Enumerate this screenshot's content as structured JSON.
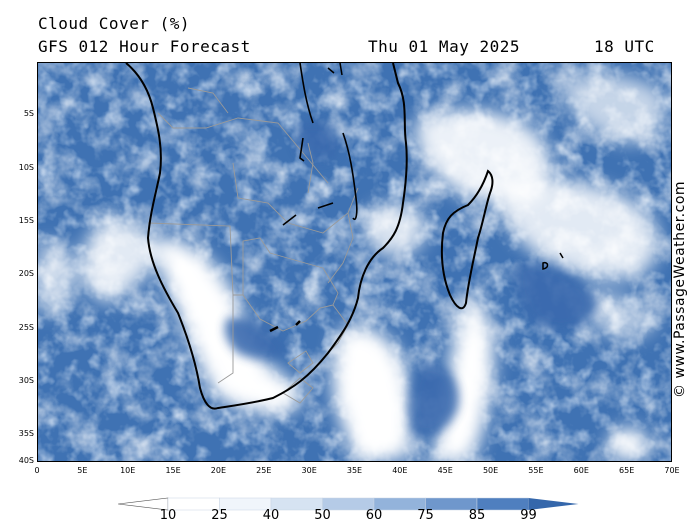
{
  "header": {
    "title": "Cloud Cover (%)",
    "subtitle": "GFS 012 Hour Forecast",
    "date": "Thu 01 May 2025",
    "time": "18 UTC"
  },
  "credit": "© www.PassageWeather.com",
  "map": {
    "lat_labels": [
      "5S",
      "10S",
      "15S",
      "20S",
      "25S",
      "30S",
      "35S",
      "40S"
    ],
    "lon_labels": [
      "0",
      "5E",
      "10E",
      "15E",
      "20E",
      "25E",
      "30E",
      "35E",
      "40E",
      "45E",
      "50E",
      "55E",
      "60E",
      "65E",
      "70E"
    ],
    "colors": {
      "ocean_cloud": "#3f72b3",
      "land_cloud": "#4f82c0",
      "clear": "#ffffff",
      "light": "#c9d9ee",
      "medium": "#8fb0da",
      "coast": "#000000",
      "border": "#9a9a9a"
    }
  },
  "colorbar": {
    "labels": [
      "10",
      "25",
      "40",
      "50",
      "60",
      "75",
      "85",
      "99"
    ],
    "colors": [
      "#ffffff",
      "#f0f5fb",
      "#d6e3f2",
      "#b5cbe7",
      "#93b3db",
      "#6f97cc",
      "#4f7fbf",
      "#3567ab"
    ]
  }
}
